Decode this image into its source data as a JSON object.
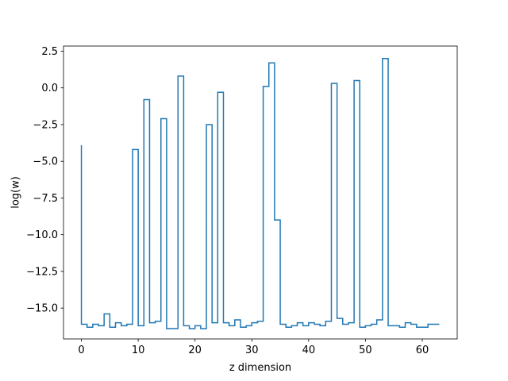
{
  "chart_data": {
    "type": "line",
    "drawstyle": "steps-pre",
    "title": "",
    "xlabel": "z dimension",
    "ylabel": "log(w)",
    "xlim": [
      -3.15,
      66.15
    ],
    "ylim": [
      -17.1,
      2.85
    ],
    "xticks": [
      0,
      10,
      20,
      30,
      40,
      50,
      60
    ],
    "yticks": [
      2.5,
      0.0,
      -2.5,
      -5.0,
      -7.5,
      -10.0,
      -12.5,
      -15.0
    ],
    "ytick_labels": [
      "2.5",
      "0.0",
      "−2.5",
      "−5.0",
      "−7.5",
      "−10.0",
      "−12.5",
      "−15.0"
    ],
    "grid": false,
    "legend": "none",
    "colors": {
      "line": "#1f77b4",
      "axes": "#000000",
      "background": "#ffffff"
    },
    "x": [
      0,
      1,
      2,
      3,
      4,
      5,
      6,
      7,
      8,
      9,
      10,
      11,
      12,
      13,
      14,
      15,
      16,
      17,
      18,
      19,
      20,
      21,
      22,
      23,
      24,
      25,
      26,
      27,
      28,
      29,
      30,
      31,
      32,
      33,
      34,
      35,
      36,
      37,
      38,
      39,
      40,
      41,
      42,
      43,
      44,
      45,
      46,
      47,
      48,
      49,
      50,
      51,
      52,
      53,
      54,
      55,
      56,
      57,
      58,
      59,
      60,
      61,
      62,
      63
    ],
    "series": [
      {
        "values": [
          -3.9,
          -16.1,
          -16.3,
          -16.1,
          -16.2,
          -15.4,
          -16.3,
          -16.0,
          -16.2,
          -16.1,
          -4.2,
          -16.2,
          -0.8,
          -16.0,
          -15.9,
          -2.1,
          -16.4,
          -16.4,
          0.8,
          -16.2,
          -16.4,
          -16.2,
          -16.4,
          -2.5,
          -16.0,
          -0.3,
          -16.0,
          -16.2,
          -15.8,
          -16.3,
          -16.2,
          -16.0,
          -15.9,
          0.1,
          1.7,
          -9.0,
          -16.1,
          -16.3,
          -16.2,
          -16.0,
          -16.2,
          -16.0,
          -16.1,
          -16.2,
          -15.9,
          0.3,
          -15.7,
          -16.1,
          -16.0,
          0.5,
          -16.3,
          -16.2,
          -16.1,
          -15.8,
          2.0,
          -16.2,
          -16.2,
          -16.3,
          -16.0,
          -16.1,
          -16.3,
          -16.3,
          -16.1,
          -16.1
        ]
      }
    ]
  }
}
